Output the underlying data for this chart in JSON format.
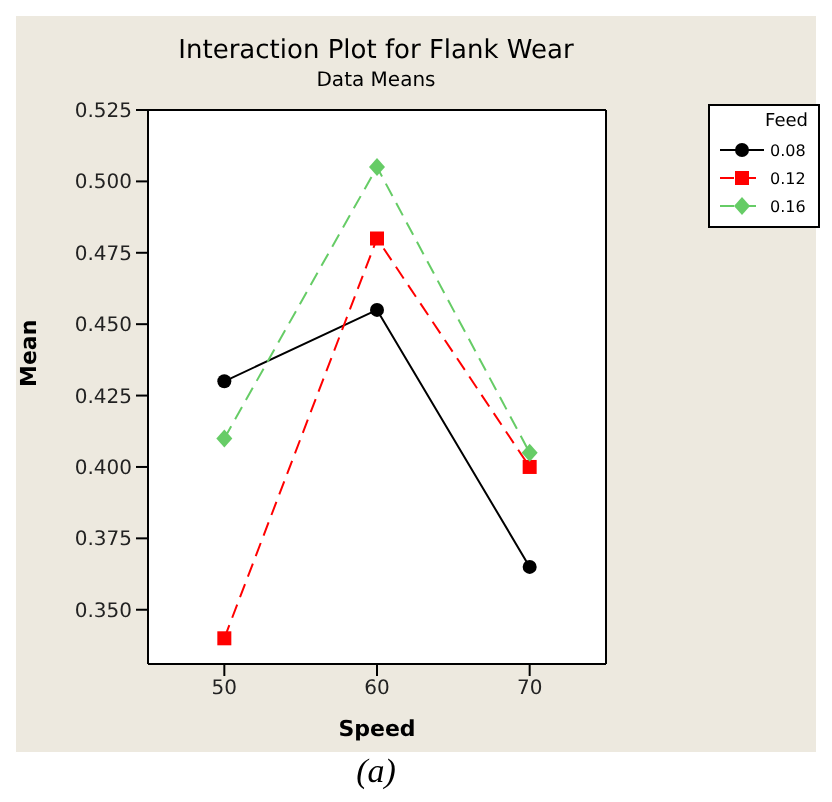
{
  "chart_data": {
    "type": "line",
    "title": "Interaction Plot for Flank Wear",
    "subtitle": "Data Means",
    "xlabel": "Speed",
    "ylabel": "Mean",
    "legend_title": "Feed",
    "x": [
      50,
      60,
      70
    ],
    "series": [
      {
        "name": "0.08",
        "color": "#000000",
        "values": [
          0.43,
          0.455,
          0.365
        ],
        "marker": "circle",
        "line_style": "solid"
      },
      {
        "name": "0.12",
        "color": "#ff0000",
        "values": [
          0.34,
          0.48,
          0.4
        ],
        "marker": "square",
        "line_style": "dashed"
      },
      {
        "name": "0.16",
        "color": "#66cc66",
        "values": [
          0.41,
          0.505,
          0.405
        ],
        "marker": "diamond",
        "line_style": "dashed"
      }
    ],
    "xlim": [
      45,
      75
    ],
    "xticks": [
      50,
      60,
      70
    ],
    "ylim": [
      0.331,
      0.525
    ],
    "yticks": [
      {
        "value": 0.35,
        "label": "0.350"
      },
      0.375,
      {
        "value": 0.4,
        "label": "0.400"
      },
      0.425,
      {
        "value": 0.45,
        "label": "0.450"
      },
      0.475,
      {
        "value": 0.5,
        "label": "0.500"
      },
      0.525
    ],
    "grid": false,
    "legend": "top right",
    "annotations": [
      "(a)"
    ]
  }
}
